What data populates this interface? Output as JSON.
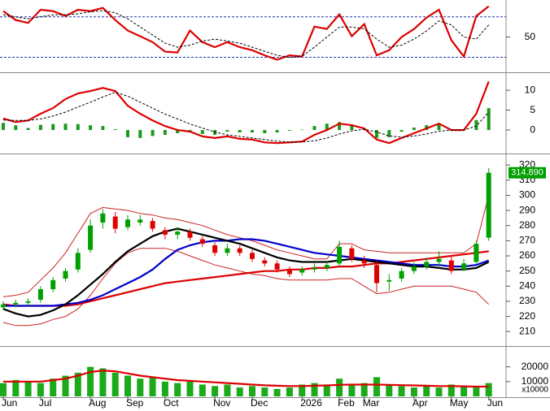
{
  "chart_data": [
    {
      "type": "line",
      "ylim": [
        16,
        85
      ],
      "yticks": [
        50
      ],
      "reference_lines": [
        70,
        30
      ],
      "reference_color": "#2233aa",
      "series": [
        {
          "color": "#dd0000",
          "style": "bold",
          "values": [
            75.6,
            66.8,
            64,
            77,
            75.6,
            70.8,
            77,
            75.6,
            78.8,
            66.8,
            56.4,
            50.8,
            45,
            35.6,
            34.8,
            56.4,
            45,
            40,
            45,
            40,
            37,
            32,
            27.6,
            32,
            30.8,
            60.4,
            58,
            72.4,
            50.8,
            62.8,
            32,
            37,
            50,
            58,
            69.2,
            77,
            46.8,
            30.8,
            70.8,
            80.4
          ]
        },
        {
          "color": "#000000",
          "style": "dashed",
          "values": [
            72,
            70,
            68,
            70,
            72,
            72,
            73,
            75,
            76,
            74,
            68,
            60,
            52,
            44,
            40,
            42,
            46,
            48,
            46,
            44,
            40,
            36,
            32,
            30,
            31,
            40,
            50,
            60,
            60,
            58,
            48,
            40,
            42,
            48,
            56,
            66,
            62,
            50,
            48,
            62
          ]
        }
      ]
    },
    {
      "type": "macd",
      "ylim": [
        -5.7,
        13.9
      ],
      "yticks": [
        0,
        5,
        10
      ],
      "series": [
        {
          "color": "#1a9a1a",
          "style": "bars",
          "values": [
            1.8,
            1.2,
            0.5,
            1.3,
            1.5,
            1.6,
            1.5,
            1.2,
            1,
            0.2,
            -1.8,
            -2,
            -1.5,
            -1.2,
            -0.8,
            -0.5,
            -1,
            -1.2,
            -0.4,
            -0.6,
            -0.6,
            -0.8,
            -0.6,
            -0.2,
            0.1,
            1,
            1.6,
            2,
            1.4,
            0.4,
            -2,
            -1.8,
            -0.4,
            0.6,
            1.2,
            1.5,
            0.2,
            0.2,
            2.5,
            5.5
          ]
        },
        {
          "color": "#dd0000",
          "style": "bold",
          "values": [
            2.9,
            2,
            2.4,
            4.1,
            5.5,
            7.8,
            9.2,
            9.8,
            10.6,
            9.8,
            6.1,
            4.1,
            2.4,
            1,
            0,
            -0.4,
            -1.6,
            -2,
            -1.6,
            -2.2,
            -2.4,
            -3.1,
            -3.3,
            -3.1,
            -2.9,
            -1.2,
            0,
            1.6,
            1.2,
            0.4,
            -2.4,
            -3.3,
            -2,
            -0.8,
            0.4,
            1.6,
            0,
            0,
            4.1,
            12.2
          ]
        },
        {
          "color": "#000000",
          "style": "dashed",
          "values": [
            2.5,
            2.4,
            2.4,
            2.8,
            3.5,
            4.5,
            5.8,
            7,
            8.3,
            9.5,
            8.5,
            7,
            5.5,
            4,
            2.8,
            1.5,
            0.5,
            -0.5,
            -1.2,
            -1.6,
            -2,
            -2.4,
            -2.8,
            -3,
            -3,
            -2.7,
            -2,
            -1,
            -0.2,
            0.2,
            -0.5,
            -1.5,
            -1.8,
            -1.5,
            -1,
            -0.3,
            0,
            0,
            1,
            4.5
          ]
        }
      ]
    },
    {
      "type": "candlestick",
      "ylim": [
        201,
        326
      ],
      "yticks": [
        210,
        220,
        230,
        240,
        250,
        260,
        270,
        280,
        290,
        300,
        310,
        320
      ],
      "up_color": "#00a000",
      "down_color": "#e00000",
      "open": [
        226,
        228,
        229,
        231,
        238,
        245,
        251,
        264,
        282,
        286,
        279,
        282,
        283,
        277,
        274,
        276,
        271,
        267,
        262,
        265,
        262,
        257,
        255,
        251,
        249,
        251,
        252,
        255,
        265,
        257,
        254,
        243,
        245,
        250,
        253,
        256,
        257,
        251,
        256,
        272
      ],
      "high": [
        230,
        231,
        232,
        240,
        246,
        252,
        265,
        284,
        291,
        289,
        287,
        287,
        285,
        279,
        279,
        278,
        273,
        269,
        268,
        267,
        264,
        259,
        257,
        253,
        253,
        255,
        256,
        270,
        267,
        260,
        257,
        248,
        252,
        256,
        259,
        263,
        260,
        258,
        270,
        318
      ],
      "low": [
        224,
        226,
        227,
        229,
        236,
        243,
        249,
        262,
        278,
        275,
        277,
        280,
        276,
        271,
        271,
        270,
        266,
        260,
        260,
        260,
        256,
        253,
        249,
        246,
        247,
        249,
        250,
        253,
        256,
        252,
        236,
        237,
        243,
        248,
        251,
        253,
        248,
        250,
        255,
        270
      ],
      "close": [
        228,
        229,
        230,
        238,
        244,
        250,
        262,
        280,
        288,
        278,
        284,
        284,
        278,
        274,
        276,
        272,
        268,
        262,
        265,
        262,
        258,
        255,
        251,
        248,
        251,
        252,
        254,
        266,
        258,
        255,
        242,
        244,
        250,
        253,
        256,
        258,
        250,
        255,
        268,
        314.89
      ],
      "last_price": {
        "value": 314.89,
        "label": "314.890"
      },
      "last_price_color": "#00a000",
      "series": [
        {
          "color": "#cc2222",
          "style": "thin",
          "values": [
            233,
            234,
            236,
            244,
            252,
            262,
            275,
            288,
            292,
            291,
            290,
            288,
            287,
            285,
            284,
            282,
            280,
            277,
            274,
            272,
            270,
            267,
            264,
            262,
            260,
            258,
            258,
            268,
            268,
            264,
            263,
            262,
            262,
            262,
            262,
            262,
            262,
            262,
            268,
            300
          ]
        },
        {
          "color": "#cc2222",
          "style": "thin",
          "values": [
            216,
            214,
            214,
            215,
            218,
            220,
            225,
            234,
            245,
            255,
            262,
            265,
            265,
            265,
            263,
            260,
            257,
            254,
            252,
            250,
            248,
            247,
            245,
            244,
            244,
            244,
            244,
            245,
            245,
            240,
            235,
            236,
            238,
            240,
            240,
            240,
            240,
            238,
            236,
            228
          ]
        },
        {
          "color": "#dd0000",
          "style": "bold",
          "values": [
            228,
            227,
            227,
            227,
            227,
            227,
            228,
            230,
            232,
            234,
            236,
            238,
            240,
            242,
            243,
            244,
            245,
            246,
            247,
            248,
            249,
            250,
            250,
            251,
            251,
            252,
            252,
            253,
            253,
            254,
            255,
            255,
            256,
            257,
            258,
            259,
            260,
            261,
            262,
            263
          ]
        },
        {
          "color": "#0000cc",
          "style": "bold",
          "values": [
            227,
            227,
            227,
            227,
            227,
            228,
            229,
            231,
            234,
            238,
            242,
            246,
            251,
            258,
            264,
            267,
            269,
            270,
            270,
            271,
            271,
            270,
            268,
            266,
            264,
            262,
            261,
            260,
            259,
            258,
            257,
            256,
            255,
            254,
            254,
            254,
            253,
            253,
            254,
            257
          ]
        },
        {
          "color": "#000000",
          "style": "bold",
          "values": [
            225,
            222,
            220,
            221,
            224,
            228,
            234,
            241,
            248,
            256,
            263,
            268,
            273,
            276,
            278,
            276,
            274,
            272,
            270,
            268,
            265,
            262,
            259,
            257,
            256,
            256,
            256,
            257,
            258,
            257,
            256,
            255,
            254,
            253,
            253,
            252,
            251,
            251,
            252,
            256
          ]
        }
      ]
    },
    {
      "type": "bar",
      "ylim": [
        0,
        33000
      ],
      "yticks": [
        10000,
        20000
      ],
      "unit_label": "x10000",
      "categories": [
        "Jun",
        null,
        null,
        "Jul",
        null,
        null,
        null,
        "Aug",
        null,
        null,
        "Sep",
        null,
        null,
        "Oct",
        null,
        null,
        null,
        "Nov",
        null,
        null,
        "Dec",
        null,
        null,
        null,
        "2026",
        null,
        null,
        "Feb",
        null,
        "Mar",
        null,
        null,
        null,
        "Apr",
        null,
        null,
        "May",
        null,
        null,
        "Jun"
      ],
      "series": [
        {
          "color": "#1aaa1a",
          "style": "bars",
          "values": [
            9000,
            11000,
            10000,
            9000,
            12000,
            14000,
            16000,
            20000,
            19000,
            16000,
            14000,
            12000,
            13000,
            10000,
            9000,
            10000,
            8000,
            7000,
            8000,
            6000,
            7000,
            6000,
            5000,
            6000,
            8000,
            9000,
            8000,
            12000,
            8000,
            9000,
            13000,
            8000,
            7000,
            6000,
            7000,
            6000,
            8000,
            7000,
            6000,
            9000
          ]
        },
        {
          "color": "#dd0000",
          "style": "bold",
          "values": [
            10000,
            10000,
            10000,
            10000,
            11000,
            12000,
            14000,
            16500,
            17500,
            17000,
            15500,
            14000,
            13000,
            12000,
            11000,
            10500,
            10000,
            9500,
            9000,
            8500,
            8000,
            7500,
            7200,
            7000,
            7000,
            7200,
            7400,
            7800,
            8000,
            8000,
            8000,
            7800,
            7600,
            7400,
            7200,
            7000,
            7000,
            6800,
            6600,
            6600
          ]
        }
      ]
    }
  ]
}
